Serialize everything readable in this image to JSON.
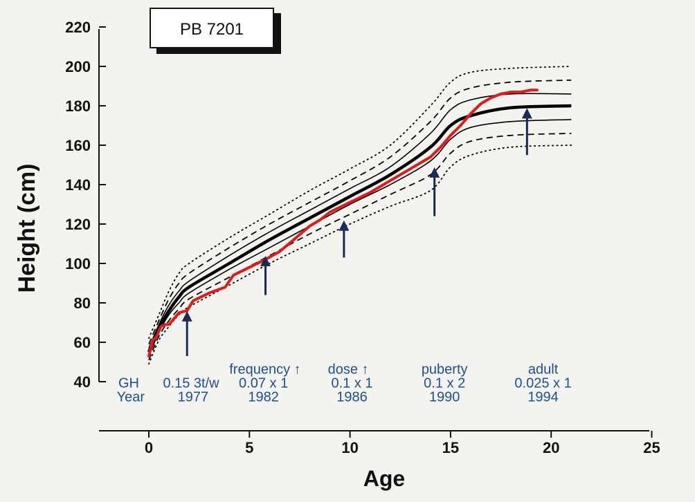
{
  "chart_data": {
    "type": "line",
    "title": "PB 7201",
    "xlabel": "Age",
    "ylabel": "Height (cm)",
    "xlim": [
      -2.5,
      25
    ],
    "ylim": [
      40,
      220
    ],
    "xticks": [
      0,
      5,
      10,
      15,
      20,
      25
    ],
    "yticks": [
      40,
      60,
      80,
      100,
      120,
      140,
      160,
      180,
      200,
      220
    ],
    "grid": false,
    "colors": {
      "patient": "#e01919",
      "reference": "#000000",
      "arrow": "#1a2a55",
      "annotation": "#1d4e96"
    },
    "reference_curves": [
      {
        "style": "dotted",
        "x": [
          0,
          0.5,
          1,
          1.5,
          2,
          4,
          6,
          8,
          10,
          12,
          14,
          15,
          16,
          18,
          21
        ],
        "y": [
          62,
          74,
          86,
          95,
          100,
          113,
          125,
          137,
          148,
          160,
          180,
          192,
          197,
          199,
          200
        ]
      },
      {
        "style": "dashed",
        "x": [
          0,
          0.5,
          1,
          1.5,
          2,
          4,
          6,
          8,
          10,
          12,
          14,
          15,
          16,
          18,
          21
        ],
        "y": [
          59,
          71,
          82,
          90,
          95,
          108,
          120,
          131,
          142,
          154,
          172,
          184,
          189,
          192,
          193
        ]
      },
      {
        "style": "solid",
        "x": [
          0,
          0.5,
          1,
          1.5,
          2,
          4,
          6,
          8,
          10,
          12,
          14,
          15,
          16,
          18,
          21
        ],
        "y": [
          57,
          69,
          79,
          86,
          91,
          104,
          116,
          127,
          138,
          149,
          166,
          178,
          183,
          186,
          186
        ]
      },
      {
        "style": "bold",
        "x": [
          0,
          0.5,
          1,
          1.5,
          2,
          4,
          6,
          8,
          10,
          12,
          14,
          15,
          16,
          18,
          21
        ],
        "y": [
          55,
          67,
          76,
          83,
          88,
          100,
          112,
          123,
          134,
          145,
          159,
          170,
          175,
          179,
          180
        ]
      },
      {
        "style": "solid",
        "x": [
          0,
          0.5,
          1,
          1.5,
          2,
          4,
          6,
          8,
          10,
          12,
          14,
          15,
          16,
          18,
          21
        ],
        "y": [
          53,
          65,
          74,
          80,
          85,
          97,
          108,
          119,
          130,
          140,
          152,
          163,
          169,
          172,
          173
        ]
      },
      {
        "style": "dashed",
        "x": [
          0,
          0.5,
          1,
          1.5,
          2,
          4,
          6,
          8,
          10,
          12,
          14,
          15,
          16,
          18,
          21
        ],
        "y": [
          51,
          63,
          71,
          77,
          82,
          93,
          104,
          115,
          125,
          135,
          145,
          156,
          162,
          165,
          166
        ]
      },
      {
        "style": "dotted",
        "x": [
          0,
          0.5,
          1,
          1.5,
          2,
          4,
          6,
          8,
          10,
          12,
          14,
          15,
          16,
          18,
          21
        ],
        "y": [
          49,
          61,
          68,
          74,
          78,
          89,
          100,
          110,
          120,
          129,
          137,
          149,
          155,
          159,
          160
        ]
      }
    ],
    "series": [
      {
        "x": [
          0,
          0.2,
          0.4,
          0.6,
          0.8,
          1.0,
          1.5,
          1.9,
          2.2,
          3.0,
          3.8,
          4.2,
          5.0,
          5.8,
          6.5,
          7.2,
          8.0,
          8.5,
          9.0,
          10.0,
          11.0,
          12.0,
          13.0,
          14.0,
          14.5,
          15.0,
          15.5,
          16.0,
          16.5,
          17.0,
          17.5,
          18.0,
          18.5,
          19.0,
          19.3
        ],
        "y": [
          53,
          61,
          63,
          68,
          69,
          69,
          75,
          76,
          81,
          85,
          88,
          94,
          98,
          102,
          106,
          112,
          119,
          122,
          126,
          131,
          136,
          142,
          148,
          154,
          159,
          165,
          170,
          176,
          181,
          184,
          186,
          187,
          187,
          188,
          188
        ]
      }
    ],
    "arrows": [
      {
        "x": 1.9,
        "y_from": 53,
        "y_to": 76
      },
      {
        "x": 5.8,
        "y_from": 84,
        "y_to": 104
      },
      {
        "x": 9.7,
        "y_from": 103,
        "y_to": 122
      },
      {
        "x": 14.2,
        "y_from": 124,
        "y_to": 149
      },
      {
        "x": 18.8,
        "y_from": 155,
        "y_to": 179
      }
    ],
    "annotations": [
      {
        "text": "frequency ↑",
        "x": 4.0,
        "y": 46.5,
        "anchor": "start"
      },
      {
        "text": "dose ↑",
        "x": 8.9,
        "y": 46.5,
        "anchor": "start"
      },
      {
        "text": "puberty",
        "x": 14.7,
        "y": 46.5,
        "anchor": "middle"
      },
      {
        "text": "adult",
        "x": 19.6,
        "y": 46.5,
        "anchor": "middle"
      },
      {
        "text": "GH",
        "x": -1.0,
        "y": 39.5,
        "anchor": "middle"
      },
      {
        "text": "0.15 3t/w",
        "x": 2.1,
        "y": 39.5,
        "anchor": "middle"
      },
      {
        "text": "0.07 x 1",
        "x": 5.7,
        "y": 39.5,
        "anchor": "middle"
      },
      {
        "text": "0.1 x 1",
        "x": 10.1,
        "y": 39.5,
        "anchor": "middle"
      },
      {
        "text": "0.1 x 2",
        "x": 14.7,
        "y": 39.5,
        "anchor": "middle"
      },
      {
        "text": "0.025 x 1",
        "x": 19.6,
        "y": 39.5,
        "anchor": "middle"
      },
      {
        "text": "Year",
        "x": -0.9,
        "y": 32.5,
        "anchor": "middle"
      },
      {
        "text": "1977",
        "x": 2.2,
        "y": 32.5,
        "anchor": "middle"
      },
      {
        "text": "1982",
        "x": 5.7,
        "y": 32.5,
        "anchor": "middle"
      },
      {
        "text": "1986",
        "x": 10.1,
        "y": 32.5,
        "anchor": "middle"
      },
      {
        "text": "1990",
        "x": 14.7,
        "y": 32.5,
        "anchor": "middle"
      },
      {
        "text": "1994",
        "x": 19.6,
        "y": 32.5,
        "anchor": "middle"
      }
    ]
  }
}
